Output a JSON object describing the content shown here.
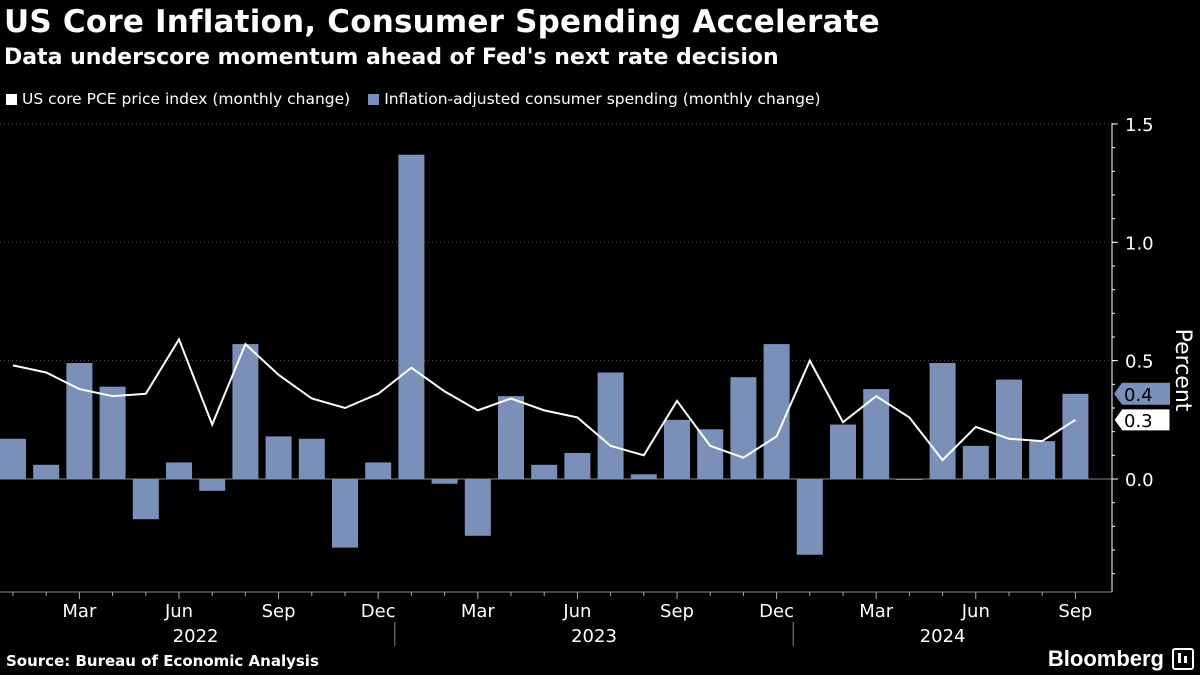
{
  "header": {
    "title": "US Core Inflation, Consumer Spending Accelerate",
    "subtitle": "Data underscore momentum ahead of Fed's next rate decision"
  },
  "legend": {
    "line_label": "US core PCE price index (monthly change)",
    "bar_label": "Inflation-adjusted consumer spending (monthly change)"
  },
  "footer": {
    "source": "Source: Bureau of Economic Analysis",
    "brand": "Bloomberg"
  },
  "colors": {
    "background": "#000000",
    "bar": "#7a90b8",
    "line": "#ffffff",
    "axis": "#ffffff",
    "gridline": "#555555"
  },
  "chart_data": {
    "type": "bar+line",
    "title": "US Core Inflation, Consumer Spending Accelerate",
    "ylabel": "Percent",
    "ylim": [
      -0.47,
      1.5
    ],
    "yticks": [
      0.0,
      0.5,
      1.0,
      1.5
    ],
    "ytick_labels": [
      "0.0",
      "0.5",
      "1.0",
      "1.5"
    ],
    "months": [
      "Jan 2022",
      "Feb 2022",
      "Mar 2022",
      "Apr 2022",
      "May 2022",
      "Jun 2022",
      "Jul 2022",
      "Aug 2022",
      "Sep 2022",
      "Oct 2022",
      "Nov 2022",
      "Dec 2022",
      "Jan 2023",
      "Feb 2023",
      "Mar 2023",
      "Apr 2023",
      "May 2023",
      "Jun 2023",
      "Jul 2023",
      "Aug 2023",
      "Sep 2023",
      "Oct 2023",
      "Nov 2023",
      "Dec 2023",
      "Jan 2024",
      "Feb 2024",
      "Mar 2024",
      "Apr 2024",
      "May 2024",
      "Jun 2024",
      "Jul 2024",
      "Aug 2024",
      "Sep 2024"
    ],
    "x_month_labels": [
      {
        "index": 2,
        "label": "Mar"
      },
      {
        "index": 5,
        "label": "Jun"
      },
      {
        "index": 8,
        "label": "Sep"
      },
      {
        "index": 11,
        "label": "Dec"
      },
      {
        "index": 14,
        "label": "Mar"
      },
      {
        "index": 17,
        "label": "Jun"
      },
      {
        "index": 20,
        "label": "Sep"
      },
      {
        "index": 23,
        "label": "Dec"
      },
      {
        "index": 26,
        "label": "Mar"
      },
      {
        "index": 29,
        "label": "Jun"
      },
      {
        "index": 32,
        "label": "Sep"
      }
    ],
    "x_year_labels": [
      {
        "start": 0,
        "end": 11,
        "label": "2022"
      },
      {
        "start": 12,
        "end": 23,
        "label": "2023"
      },
      {
        "start": 24,
        "end": 32,
        "label": "2024"
      }
    ],
    "series": [
      {
        "name": "Inflation-adjusted consumer spending (monthly change)",
        "kind": "bar",
        "values": [
          0.17,
          0.06,
          0.49,
          0.39,
          -0.17,
          0.07,
          -0.05,
          0.57,
          0.18,
          0.17,
          -0.29,
          0.07,
          1.37,
          -0.02,
          -0.24,
          0.35,
          0.06,
          0.11,
          0.45,
          0.02,
          0.25,
          0.21,
          0.43,
          0.57,
          -0.32,
          0.23,
          0.38,
          0.0,
          0.49,
          0.14,
          0.42,
          0.16,
          0.36
        ]
      },
      {
        "name": "US core PCE price index (monthly change)",
        "kind": "line",
        "values": [
          0.48,
          0.45,
          0.38,
          0.35,
          0.36,
          0.59,
          0.23,
          0.57,
          0.44,
          0.34,
          0.3,
          0.36,
          0.47,
          0.37,
          0.29,
          0.34,
          0.29,
          0.26,
          0.14,
          0.1,
          0.33,
          0.14,
          0.09,
          0.18,
          0.5,
          0.24,
          0.35,
          0.26,
          0.08,
          0.22,
          0.17,
          0.16,
          0.25
        ]
      }
    ],
    "callouts": [
      {
        "series": "bar",
        "label": "0.4"
      },
      {
        "series": "line",
        "label": "0.3"
      }
    ]
  }
}
